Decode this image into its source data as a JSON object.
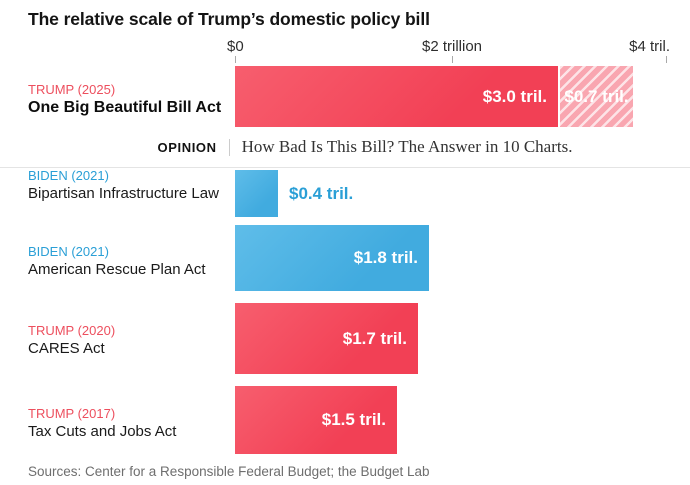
{
  "title": "The relative scale of Trump’s domestic policy bill",
  "axis": {
    "tick_labels": [
      "$0",
      "$2 trillion",
      "$4 tril."
    ],
    "tick_values": [
      0,
      2,
      4
    ]
  },
  "rows": [
    {
      "party": "TRUMP (2025)",
      "act": "One Big Beautiful Bill Act",
      "value": 3.0,
      "value_label": "$3.0 tril.",
      "extra_value": 0.7,
      "extra_label": "$0.7 tril.",
      "bar": "red",
      "extra_style": "hatched"
    },
    {
      "party": "BIDEN (2021)",
      "act": "Bipartisan Infrastructure Law",
      "value": 0.4,
      "value_label": "$0.4 tril.",
      "bar": "blue",
      "label_position": "outside"
    },
    {
      "party": "BIDEN (2021)",
      "act": "American Rescue Plan Act",
      "value": 1.8,
      "value_label": "$1.8 tril.",
      "bar": "blue"
    },
    {
      "party": "TRUMP (2020)",
      "act": "CARES Act",
      "value": 1.7,
      "value_label": "$1.7 tril.",
      "bar": "red"
    },
    {
      "party": "TRUMP (2017)",
      "act": "Tax Cuts and Jobs Act",
      "value": 1.5,
      "value_label": "$1.5 tril.",
      "bar": "red"
    }
  ],
  "banner": {
    "kicker": "OPINION",
    "headline": "How Bad Is This Bill? The Answer in 10 Charts."
  },
  "sources": "Sources: Center for a Responsible Federal Budget; the Budget Lab",
  "colors": {
    "red_bar": "#f24055",
    "red_hatch_bg": "#f9a6b0",
    "blue_bar": "#41abdf",
    "trump_label": "#ed4f5e",
    "biden_label": "#2a9fd6"
  },
  "chart_data": {
    "type": "bar",
    "orientation": "horizontal",
    "title": "The relative scale of Trump’s domestic policy bill",
    "categories": [
      "One Big Beautiful Bill Act",
      "Bipartisan Infrastructure Law",
      "American Rescue Plan Act",
      "CARES Act",
      "Tax Cuts and Jobs Act"
    ],
    "category_annotations": [
      "TRUMP (2025)",
      "BIDEN (2021)",
      "BIDEN (2021)",
      "TRUMP (2020)",
      "TRUMP (2017)"
    ],
    "values_trillions": [
      3.0,
      0.4,
      1.8,
      1.7,
      1.5
    ],
    "extra_segment": {
      "category": "One Big Beautiful Bill Act",
      "value_trillions": 0.7,
      "style": "hatched",
      "label": "$0.7 tril."
    },
    "data_labels": [
      "$3.0 tril.",
      "$0.4 tril.",
      "$1.8 tril.",
      "$1.7 tril.",
      "$1.5 tril."
    ],
    "xlabel": "",
    "ylabel": "",
    "xlim": [
      0,
      4.2
    ],
    "x_ticks": [
      "$0",
      "$2 trillion",
      "$4 tril."
    ],
    "x_tick_values": [
      0,
      2,
      4
    ],
    "grid": false,
    "legend": false,
    "bar_colors": [
      "red",
      "blue",
      "blue",
      "red",
      "red"
    ]
  }
}
